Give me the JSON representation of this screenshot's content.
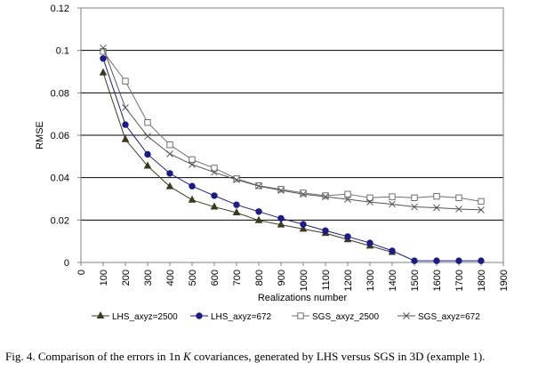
{
  "chart_data": {
    "type": "line",
    "title": "",
    "xlabel": "Realizations number",
    "ylabel": "RMSE",
    "xlim": [
      0,
      1900
    ],
    "ylim": [
      0,
      0.12
    ],
    "grid": "horizontal",
    "legend": "bottom",
    "x_ticks": [
      "0",
      "100",
      "200",
      "300",
      "400",
      "500",
      "600",
      "700",
      "800",
      "900",
      "1000",
      "1100",
      "1200",
      "1300",
      "1400",
      "1500",
      "1600",
      "1700",
      "1800",
      "1900"
    ],
    "y_ticks": [
      "0",
      "0.02",
      "0.04",
      "0.06",
      "0.08",
      "0.1",
      "0.12"
    ],
    "series": [
      {
        "name": "LHS_axyz=2500",
        "marker": "triangle",
        "x": [
          100,
          200,
          300,
          400,
          500,
          600,
          700,
          800,
          900,
          1000,
          1100,
          1200,
          1300,
          1400
        ],
        "values": [
          0.0895,
          0.058,
          0.0455,
          0.0358,
          0.0295,
          0.0262,
          0.0235,
          0.0198,
          0.0178,
          0.0158,
          0.0138,
          0.0108,
          0.0078,
          0.0048
        ]
      },
      {
        "name": "LHS_axyz=672",
        "marker": "circle",
        "x": [
          100,
          200,
          300,
          400,
          500,
          600,
          700,
          800,
          900,
          1000,
          1100,
          1200,
          1300,
          1400,
          1500,
          1600,
          1700,
          1800
        ],
        "values": [
          0.0962,
          0.065,
          0.051,
          0.042,
          0.036,
          0.0315,
          0.0272,
          0.024,
          0.0208,
          0.018,
          0.015,
          0.0122,
          0.0092,
          0.0055,
          0.0008,
          0.0008,
          0.0008,
          0.0008
        ]
      },
      {
        "name": "SGS_axyz_2500",
        "marker": "square",
        "x": [
          100,
          200,
          300,
          400,
          500,
          600,
          700,
          800,
          900,
          1000,
          1100,
          1200,
          1300,
          1400,
          1500,
          1600,
          1700,
          1800
        ],
        "values": [
          0.0995,
          0.0855,
          0.066,
          0.0555,
          0.0485,
          0.0445,
          0.0395,
          0.0362,
          0.0345,
          0.0328,
          0.0315,
          0.0322,
          0.0305,
          0.031,
          0.0305,
          0.0312,
          0.0305,
          0.0288
        ]
      },
      {
        "name": "SGS_axyz=672",
        "marker": "x",
        "x": [
          100,
          200,
          300,
          400,
          500,
          600,
          700,
          800,
          900,
          1000,
          1100,
          1200,
          1300,
          1400,
          1500,
          1600,
          1700,
          1800
        ],
        "values": [
          0.1012,
          0.073,
          0.0595,
          0.0512,
          0.0462,
          0.0425,
          0.039,
          0.036,
          0.034,
          0.0322,
          0.031,
          0.0298,
          0.0285,
          0.0275,
          0.0262,
          0.0258,
          0.0252,
          0.0248
        ]
      }
    ]
  },
  "caption": {
    "prefix": "Fig. 4. Comparison of the errors in 1n ",
    "italic": "K",
    "suffix": " covariances, generated by LHS versus SGS in 3D (example 1)."
  },
  "colors": {
    "grid": "#000000",
    "border": "#808080",
    "lhs_2500": "#3a3a1e",
    "lhs_672": "#1b1b8a",
    "sgs_2500": "#707070",
    "sgs_672": "#555555"
  }
}
